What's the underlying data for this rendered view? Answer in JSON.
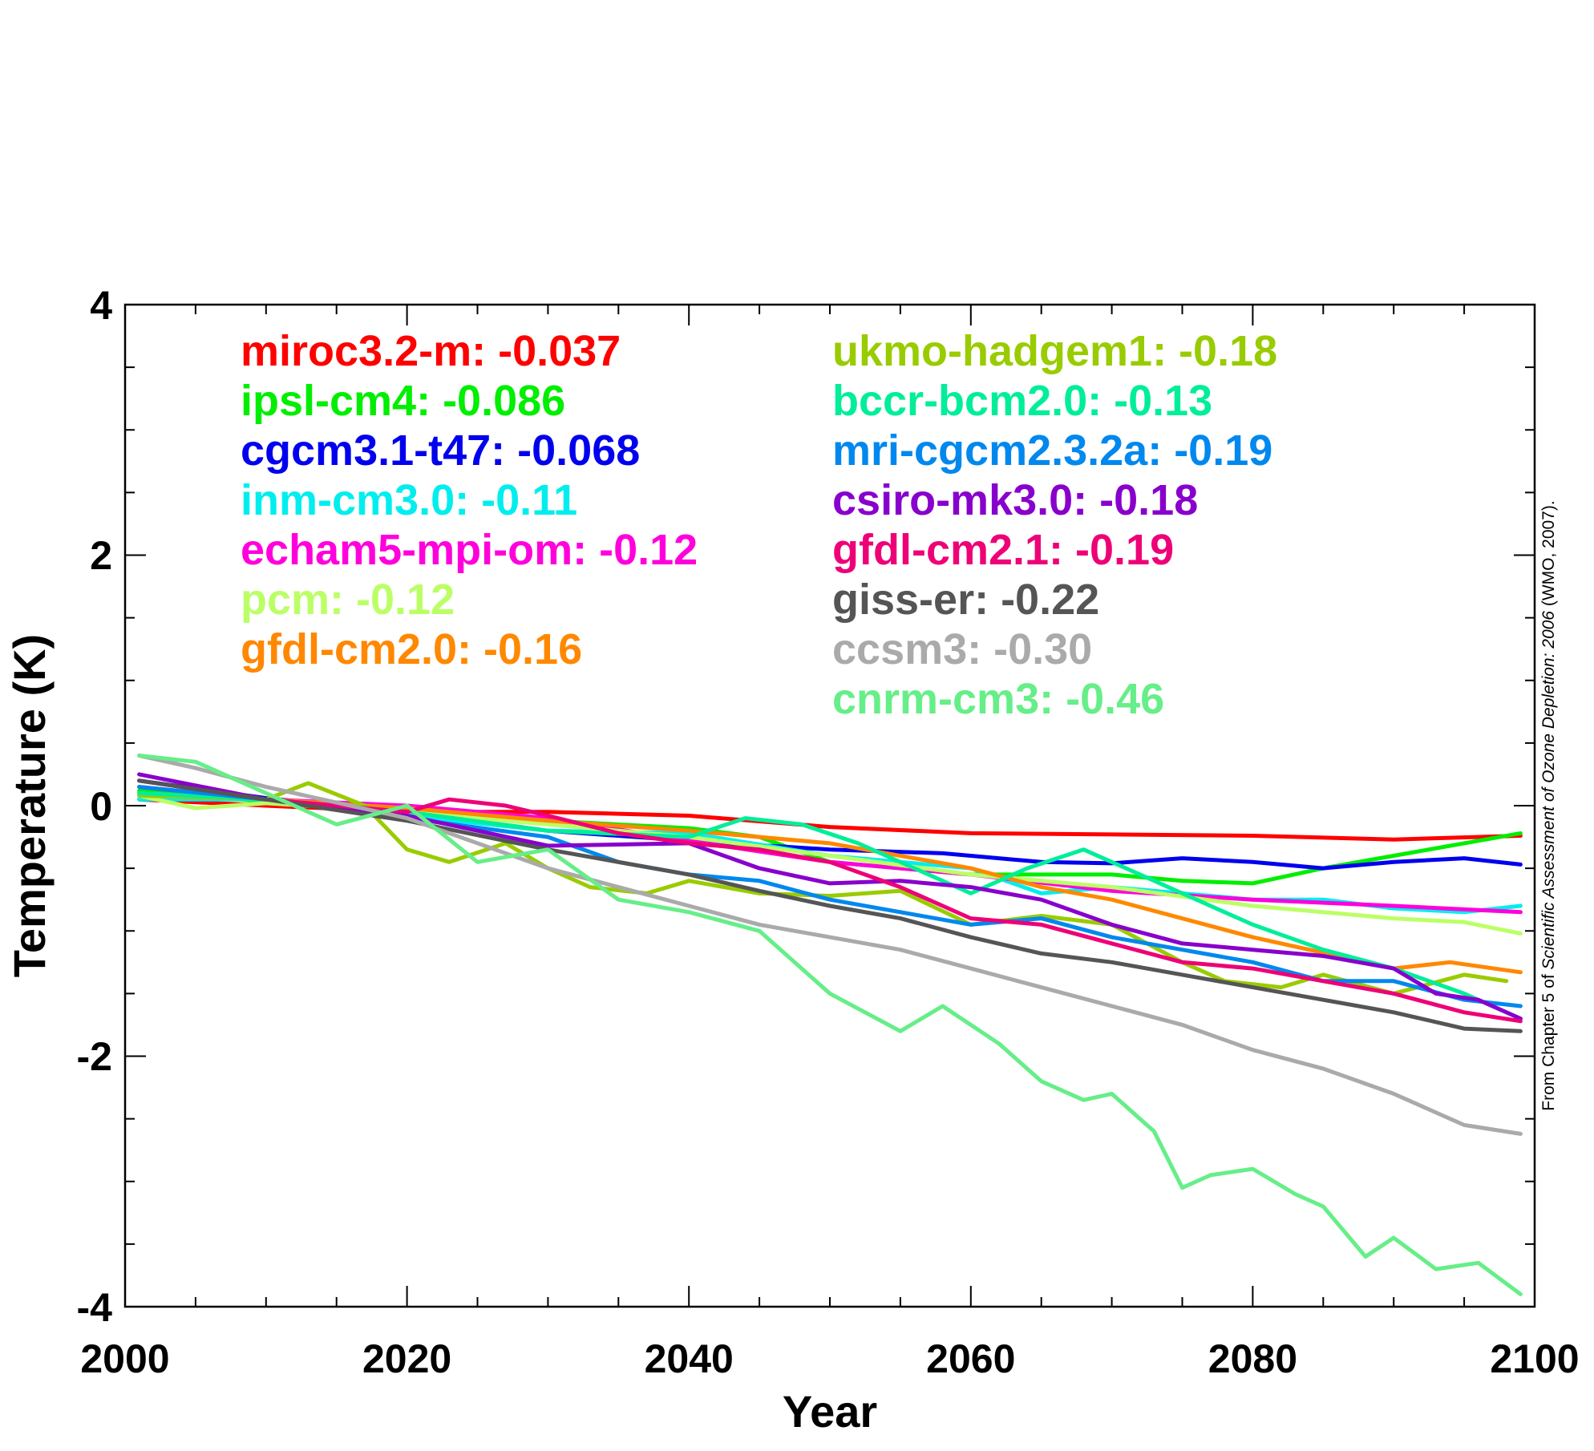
{
  "chart_data": {
    "type": "line",
    "xlabel": "Year",
    "ylabel": "Temperature (K)",
    "xlim": [
      2000,
      2100
    ],
    "ylim": [
      -4,
      4
    ],
    "xticks": [
      2000,
      2020,
      2040,
      2060,
      2080,
      2100
    ],
    "yticks": [
      4,
      2,
      0,
      -2,
      -4
    ],
    "xtick_labels": [
      "2000",
      "2020",
      "2040",
      "2060",
      "2080",
      "2100"
    ],
    "ytick_labels": [
      "4",
      "2",
      "0",
      "-2",
      "-4"
    ],
    "grid": false,
    "legend_placement": "top, two columns inside plot",
    "source_note": {
      "prefix": "From Chapter 5 of ",
      "italic": "Scientific Assessment of Ozone Depletion: 2006",
      "suffix": " (WMO, 2007)."
    },
    "series": [
      {
        "name": "miroc3.2-m",
        "label": "miroc3.2-m: -0.037",
        "color": "#ff0000",
        "x": [
          2001,
          2010,
          2020,
          2030,
          2040,
          2050,
          2060,
          2070,
          2080,
          2090,
          2099
        ],
        "y": [
          0.05,
          0.0,
          -0.05,
          -0.05,
          -0.08,
          -0.17,
          -0.22,
          -0.23,
          -0.24,
          -0.27,
          -0.24
        ]
      },
      {
        "name": "ipsl-cm4",
        "label": "ipsl-cm4: -0.086",
        "color": "#00ee00",
        "x": [
          2001,
          2010,
          2020,
          2030,
          2040,
          2045,
          2050,
          2055,
          2060,
          2065,
          2070,
          2075,
          2080,
          2085,
          2090,
          2095,
          2099
        ],
        "y": [
          0.12,
          0.03,
          -0.05,
          -0.12,
          -0.18,
          -0.25,
          -0.45,
          -0.5,
          -0.55,
          -0.55,
          -0.55,
          -0.6,
          -0.62,
          -0.5,
          -0.4,
          -0.3,
          -0.22
        ]
      },
      {
        "name": "cgcm3.1-t47",
        "label": "cgcm3.1-t47: -0.068",
        "color": "#0000ee",
        "x": [
          2001,
          2010,
          2020,
          2030,
          2040,
          2050,
          2058,
          2065,
          2070,
          2075,
          2080,
          2085,
          2090,
          2095,
          2099
        ],
        "y": [
          0.2,
          0.06,
          -0.05,
          -0.2,
          -0.28,
          -0.35,
          -0.38,
          -0.45,
          -0.46,
          -0.42,
          -0.45,
          -0.5,
          -0.45,
          -0.42,
          -0.47
        ]
      },
      {
        "name": "inm-cm3.0",
        "label": "inm-cm3.0: -0.11",
        "color": "#00eeee",
        "x": [
          2001,
          2010,
          2020,
          2030,
          2040,
          2050,
          2060,
          2065,
          2070,
          2080,
          2085,
          2090,
          2095,
          2099
        ],
        "y": [
          0.05,
          0.05,
          -0.08,
          -0.2,
          -0.22,
          -0.4,
          -0.5,
          -0.7,
          -0.65,
          -0.75,
          -0.75,
          -0.82,
          -0.85,
          -0.8
        ]
      },
      {
        "name": "echam5-mpi-om",
        "label": "echam5-mpi-om: -0.12",
        "color": "#ff00dd",
        "x": [
          2001,
          2010,
          2020,
          2025,
          2030,
          2040,
          2050,
          2060,
          2070,
          2080,
          2090,
          2099
        ],
        "y": [
          0.15,
          0.05,
          0.0,
          -0.05,
          -0.1,
          -0.28,
          -0.45,
          -0.55,
          -0.68,
          -0.75,
          -0.8,
          -0.85
        ]
      },
      {
        "name": "pcm",
        "label": "pcm: -0.12",
        "color": "#bbff66",
        "x": [
          2001,
          2005,
          2010,
          2020,
          2030,
          2040,
          2050,
          2060,
          2070,
          2080,
          2090,
          2095,
          2099
        ],
        "y": [
          0.08,
          -0.02,
          0.02,
          -0.05,
          -0.15,
          -0.25,
          -0.4,
          -0.55,
          -0.65,
          -0.8,
          -0.9,
          -0.93,
          -1.02
        ]
      },
      {
        "name": "gfdl-cm2.0",
        "label": "gfdl-cm2.0: -0.16",
        "color": "#ff8800",
        "x": [
          2001,
          2010,
          2020,
          2030,
          2040,
          2050,
          2060,
          2065,
          2070,
          2080,
          2090,
          2094,
          2099
        ],
        "y": [
          0.1,
          0.05,
          -0.02,
          -0.12,
          -0.2,
          -0.3,
          -0.5,
          -0.65,
          -0.75,
          -1.05,
          -1.3,
          -1.25,
          -1.33
        ]
      },
      {
        "name": "ukmo-hadgem1",
        "label": "ukmo-hadgem1: -0.18",
        "color": "#99cc00",
        "x": [
          2001,
          2010,
          2013,
          2017,
          2020,
          2023,
          2027,
          2030,
          2033,
          2037,
          2040,
          2045,
          2050,
          2055,
          2060,
          2065,
          2070,
          2075,
          2078,
          2082,
          2085,
          2090,
          2095,
          2098
        ],
        "y": [
          0.08,
          0.05,
          0.18,
          0.0,
          -0.35,
          -0.45,
          -0.3,
          -0.5,
          -0.65,
          -0.7,
          -0.6,
          -0.7,
          -0.72,
          -0.68,
          -0.95,
          -0.88,
          -0.95,
          -1.25,
          -1.4,
          -1.45,
          -1.35,
          -1.5,
          -1.35,
          -1.4
        ]
      },
      {
        "name": "bccr-bcm2.0",
        "label": "bccr-bcm2.0: -0.13",
        "color": "#00ee99",
        "x": [
          2001,
          2010,
          2020,
          2030,
          2040,
          2044,
          2048,
          2052,
          2056,
          2060,
          2064,
          2068,
          2072,
          2076,
          2080,
          2085,
          2090,
          2095,
          2099
        ],
        "y": [
          0.1,
          0.05,
          -0.05,
          -0.2,
          -0.25,
          -0.1,
          -0.15,
          -0.3,
          -0.5,
          -0.7,
          -0.5,
          -0.35,
          -0.55,
          -0.75,
          -0.95,
          -1.15,
          -1.3,
          -1.5,
          -1.7
        ]
      },
      {
        "name": "mri-cgcm2.3.2a",
        "label": "mri-cgcm2.3.2a: -0.19",
        "color": "#0088ee",
        "x": [
          2001,
          2010,
          2020,
          2030,
          2035,
          2040,
          2045,
          2050,
          2055,
          2060,
          2065,
          2070,
          2075,
          2080,
          2085,
          2090,
          2095,
          2099
        ],
        "y": [
          0.15,
          0.05,
          -0.1,
          -0.25,
          -0.45,
          -0.55,
          -0.6,
          -0.75,
          -0.85,
          -0.95,
          -0.9,
          -1.05,
          -1.15,
          -1.25,
          -1.4,
          -1.4,
          -1.55,
          -1.6
        ]
      },
      {
        "name": "csiro-mk3.0",
        "label": "csiro-mk3.0: -0.18",
        "color": "#8800cc",
        "x": [
          2001,
          2010,
          2020,
          2030,
          2040,
          2045,
          2050,
          2055,
          2060,
          2065,
          2070,
          2075,
          2080,
          2085,
          2090,
          2093,
          2096,
          2099
        ],
        "y": [
          0.25,
          0.05,
          -0.08,
          -0.32,
          -0.3,
          -0.5,
          -0.62,
          -0.6,
          -0.65,
          -0.75,
          -0.95,
          -1.1,
          -1.15,
          -1.2,
          -1.3,
          -1.5,
          -1.55,
          -1.7
        ]
      },
      {
        "name": "gfdl-cm2.1",
        "label": "gfdl-cm2.1: -0.19",
        "color": "#ee0077",
        "x": [
          2001,
          2010,
          2020,
          2023,
          2027,
          2030,
          2035,
          2040,
          2045,
          2050,
          2055,
          2060,
          2065,
          2070,
          2075,
          2080,
          2085,
          2090,
          2095,
          2099
        ],
        "y": [
          0.2,
          0.05,
          -0.05,
          0.05,
          0.0,
          -0.08,
          -0.22,
          -0.3,
          -0.35,
          -0.45,
          -0.65,
          -0.9,
          -0.95,
          -1.1,
          -1.25,
          -1.3,
          -1.4,
          -1.5,
          -1.65,
          -1.72
        ]
      },
      {
        "name": "giss-er",
        "label": "giss-er: -0.22",
        "color": "#555555",
        "x": [
          2001,
          2010,
          2020,
          2030,
          2040,
          2045,
          2050,
          2055,
          2060,
          2065,
          2070,
          2075,
          2080,
          2085,
          2090,
          2095,
          2099
        ],
        "y": [
          0.2,
          0.05,
          -0.12,
          -0.35,
          -0.55,
          -0.68,
          -0.8,
          -0.9,
          -1.05,
          -1.18,
          -1.25,
          -1.35,
          -1.45,
          -1.55,
          -1.65,
          -1.78,
          -1.8
        ]
      },
      {
        "name": "ccsm3",
        "label": "ccsm3: -0.30",
        "color": "#aaaaaa",
        "x": [
          2001,
          2005,
          2010,
          2020,
          2030,
          2035,
          2040,
          2045,
          2050,
          2055,
          2060,
          2065,
          2070,
          2075,
          2080,
          2085,
          2090,
          2095,
          2099
        ],
        "y": [
          0.4,
          0.3,
          0.15,
          -0.1,
          -0.5,
          -0.65,
          -0.8,
          -0.95,
          -1.05,
          -1.15,
          -1.3,
          -1.45,
          -1.6,
          -1.75,
          -1.95,
          -2.1,
          -2.3,
          -2.55,
          -2.62
        ]
      },
      {
        "name": "cnrm-cm3",
        "label": "cnrm-cm3: -0.46",
        "color": "#66ee88",
        "x": [
          2001,
          2005,
          2010,
          2015,
          2020,
          2025,
          2030,
          2035,
          2040,
          2045,
          2050,
          2055,
          2058,
          2062,
          2065,
          2068,
          2070,
          2073,
          2075,
          2077,
          2080,
          2083,
          2085,
          2088,
          2090,
          2093,
          2096,
          2099
        ],
        "y": [
          0.4,
          0.35,
          0.1,
          -0.15,
          0.0,
          -0.45,
          -0.35,
          -0.75,
          -0.85,
          -1.0,
          -1.5,
          -1.8,
          -1.6,
          -1.9,
          -2.2,
          -2.35,
          -2.3,
          -2.6,
          -3.05,
          -2.95,
          -2.9,
          -3.1,
          -3.2,
          -3.6,
          -3.45,
          -3.7,
          -3.65,
          -3.9
        ]
      }
    ]
  }
}
